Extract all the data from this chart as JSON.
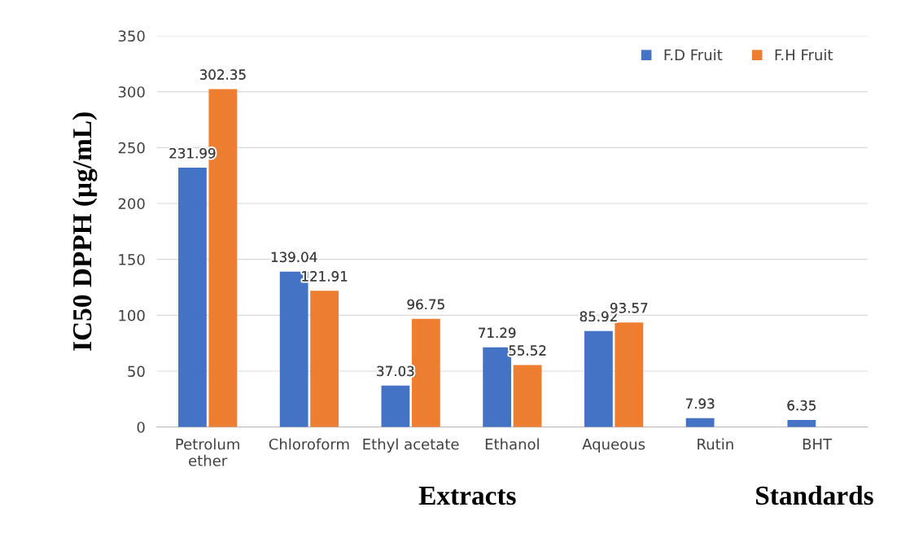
{
  "chart_data": {
    "type": "bar",
    "categories": [
      "Petrolum\nether",
      "Chloroform",
      "Ethyl acetate",
      "Ethanol",
      "Aqueous",
      "Rutin",
      "BHT"
    ],
    "series": [
      {
        "name": "F.D Fruit",
        "color": "#4472c4",
        "values": [
          231.99,
          139.04,
          37.03,
          71.29,
          85.92,
          7.93,
          6.35
        ]
      },
      {
        "name": "F.H Fruit",
        "color": "#ed7d31",
        "values": [
          302.35,
          121.91,
          96.75,
          55.52,
          93.57,
          null,
          null
        ]
      }
    ],
    "ylabel": "IC50 DPPH (µg/mL)",
    "xlabel": "Extracts",
    "annotations": [
      "Standards"
    ],
    "ylim": [
      0,
      350
    ],
    "yticks": [
      0,
      50,
      100,
      150,
      200,
      250,
      300,
      350
    ],
    "grid": "y",
    "legend": "top right",
    "data_labels": true
  }
}
